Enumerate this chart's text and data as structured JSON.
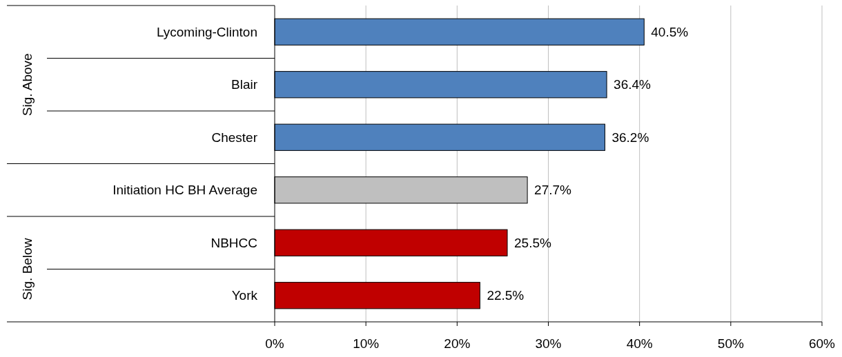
{
  "chart_data": {
    "type": "bar",
    "orientation": "horizontal",
    "categories": [
      "Lycoming-Clinton",
      "Blair",
      "Chester",
      "Initiation HC BH Average",
      "NBHCC",
      "York"
    ],
    "values": [
      40.5,
      36.4,
      36.2,
      27.7,
      25.5,
      22.5
    ],
    "colors": [
      "#4f81bd",
      "#4f81bd",
      "#4f81bd",
      "#bfbfbf",
      "#c00000",
      "#c00000"
    ],
    "value_labels": [
      "40.5%",
      "36.4%",
      "36.2%",
      "27.7%",
      "25.5%",
      "22.5%"
    ],
    "xlim": [
      0,
      60
    ],
    "xticks": [
      {
        "value": 0,
        "label": "0%"
      },
      {
        "value": 10,
        "label": "10%"
      },
      {
        "value": 20,
        "label": "20%"
      },
      {
        "value": 30,
        "label": "30%"
      },
      {
        "value": 40,
        "label": "40%"
      },
      {
        "value": 50,
        "label": "50%"
      },
      {
        "value": 60,
        "label": "60%"
      }
    ],
    "grid": "x",
    "annotations": [
      "Sig. Above",
      "Sig. Below"
    ]
  }
}
